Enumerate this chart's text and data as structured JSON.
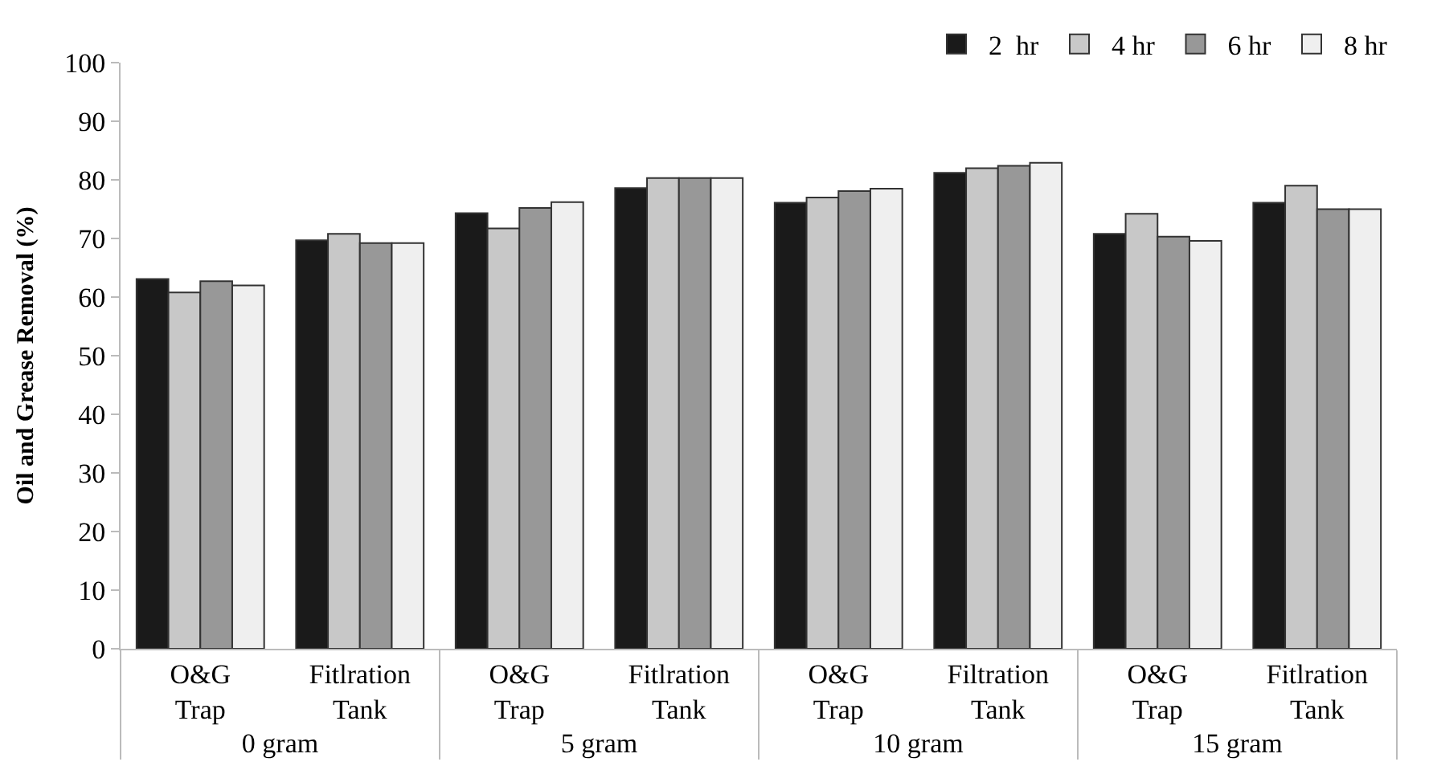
{
  "chart_data": {
    "type": "bar",
    "ylabel": "Oil and Grease Removal (%)",
    "categories": [
      "O&G Trap",
      "Fitlration Tank",
      "O&G Trap",
      "Fitlration Tank",
      "O&G Trap",
      "Filtration Tank",
      "O&G Trap",
      "Fitlration Tank"
    ],
    "annotations": [
      "0 gram",
      "5 gram",
      "10 gram",
      "15 gram"
    ],
    "series": [
      {
        "name": "2  hr",
        "color": "#1a1a1a",
        "values": [
          63.1,
          69.7,
          74.3,
          78.6,
          76.1,
          81.2,
          70.8,
          76.1
        ]
      },
      {
        "name": "4 hr",
        "color": "#c8c8c8",
        "values": [
          60.8,
          70.8,
          71.7,
          80.3,
          77.0,
          82.0,
          74.2,
          79.0
        ]
      },
      {
        "name": "6 hr",
        "color": "#989898",
        "values": [
          62.7,
          69.2,
          75.2,
          80.3,
          78.1,
          82.4,
          70.3,
          75.0
        ]
      },
      {
        "name": "8 hr",
        "color": "#efefef",
        "values": [
          62.0,
          69.2,
          76.2,
          80.3,
          78.5,
          82.9,
          69.6,
          75.0
        ]
      }
    ],
    "ylim": [
      0,
      100
    ],
    "yticks": [
      0,
      10,
      20,
      30,
      40,
      50,
      60,
      70,
      80,
      90,
      100
    ],
    "legend": "top right"
  }
}
